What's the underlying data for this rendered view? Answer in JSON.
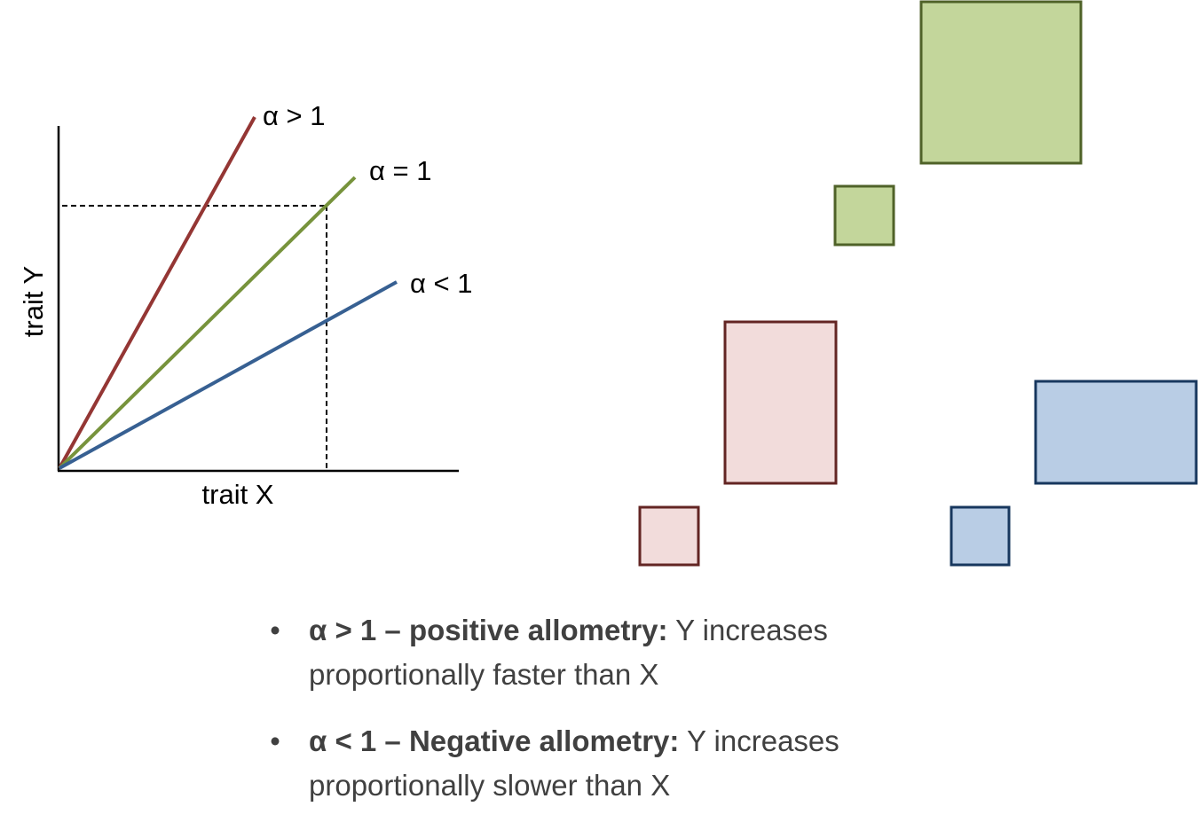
{
  "graph": {
    "ylabel": "trait Y",
    "xlabel": "trait X",
    "lines": [
      {
        "label": "α > 1",
        "slope": "greater than 1",
        "color": "#943634"
      },
      {
        "label": "α = 1",
        "slope": "equal to 1",
        "color": "#77933c"
      },
      {
        "label": "α < 1",
        "slope": "less than 1",
        "color": "#376092"
      }
    ]
  },
  "shapes": {
    "colors": {
      "green_fill": "#c3d69b",
      "green_border": "#4f6228",
      "red_fill": "#f2dcdb",
      "red_border": "#632523",
      "blue_fill": "#b9cde5",
      "blue_border": "#17375e"
    }
  },
  "bullets": [
    {
      "marker": "•",
      "bold": "α > 1 – positive allometry:",
      "text": " Y increases proportionally faster than X"
    },
    {
      "marker": "•",
      "bold": "α < 1 – Negative allometry:",
      "text": " Y increases proportionally slower than X"
    }
  ]
}
